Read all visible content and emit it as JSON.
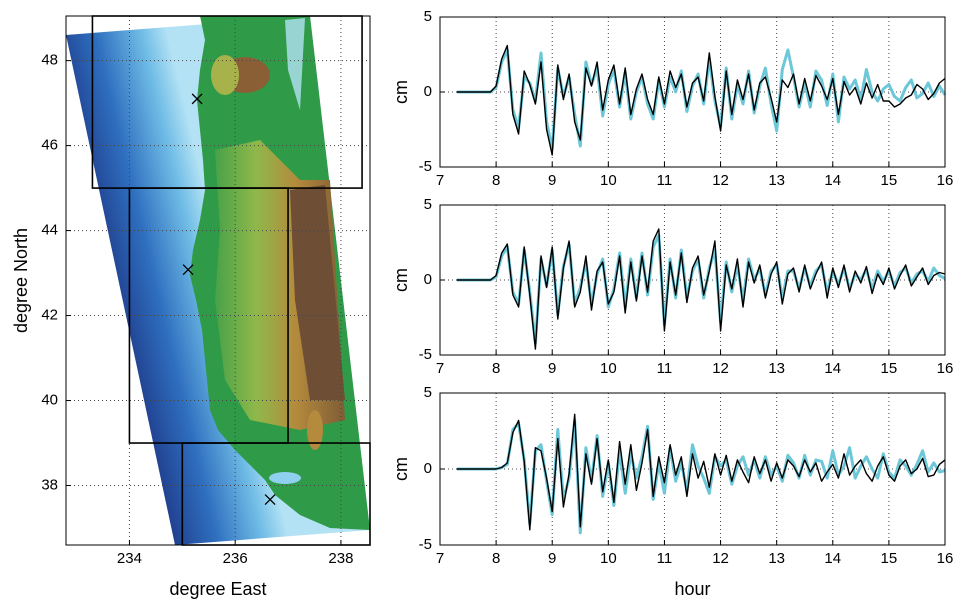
{
  "chart_data": [
    {
      "type": "map",
      "xlabel": "degree East",
      "ylabel": "degree North",
      "xlim": [
        232.8,
        238.55
      ],
      "ylim": [
        36.6,
        49.05
      ],
      "xticks": [
        234,
        236,
        238
      ],
      "yticks": [
        38,
        40,
        42,
        44,
        46,
        48
      ],
      "grid": true,
      "boxes": [
        [
          233.3,
          238.4,
          45,
          49.05
        ],
        [
          234,
          237,
          39,
          45
        ],
        [
          235,
          238.55,
          36.6,
          39
        ]
      ],
      "markers": [
        {
          "x": 235.28,
          "y": 47.1
        },
        {
          "x": 235.11,
          "y": 43.08
        },
        {
          "x": 236.66,
          "y": 37.67
        }
      ]
    },
    {
      "type": "line",
      "ylabel": "cm",
      "xlim": [
        7,
        16
      ],
      "ylim": [
        -5,
        5
      ],
      "xticks": [
        7,
        8,
        9,
        10,
        11,
        12,
        13,
        14,
        15,
        16
      ],
      "yticks": [
        -5,
        0,
        5
      ],
      "grid": true,
      "x": [
        7.3,
        7.4,
        7.5,
        7.6,
        7.7,
        7.8,
        7.9,
        8.0,
        8.1,
        8.2,
        8.3,
        8.4,
        8.5,
        8.6,
        8.7,
        8.8,
        8.9,
        9.0,
        9.1,
        9.2,
        9.3,
        9.4,
        9.5,
        9.6,
        9.7,
        9.8,
        9.9,
        10.0,
        10.1,
        10.2,
        10.3,
        10.4,
        10.5,
        10.6,
        10.7,
        10.8,
        10.9,
        11.0,
        11.1,
        11.2,
        11.3,
        11.4,
        11.5,
        11.6,
        11.7,
        11.8,
        11.9,
        12.0,
        12.1,
        12.2,
        12.3,
        12.4,
        12.5,
        12.6,
        12.7,
        12.8,
        12.9,
        13.0,
        13.1,
        13.2,
        13.3,
        13.4,
        13.5,
        13.6,
        13.7,
        13.8,
        13.9,
        14.0,
        14.1,
        14.2,
        14.3,
        14.4,
        14.5,
        14.6,
        14.7,
        14.8,
        14.9,
        15.0,
        15.1,
        15.2,
        15.3,
        15.4,
        15.5,
        15.6,
        15.7,
        15.8,
        15.9,
        16.0
      ],
      "series": [
        {
          "color": "#6cc8d8",
          "values": [
            0,
            0,
            0,
            0,
            0,
            0,
            0,
            0.3,
            2.0,
            2.8,
            -1.2,
            -2.4,
            1.0,
            0.6,
            -0.6,
            2.6,
            -2.0,
            -3.8,
            1.6,
            -0.3,
            1.0,
            -1.5,
            -3.6,
            2.0,
            0.5,
            1.6,
            -1.6,
            0.5,
            1.5,
            -1.0,
            1.3,
            -1.8,
            0.0,
            1.0,
            -0.8,
            -1.8,
            0.8,
            -1.0,
            1.0,
            0.0,
            1.4,
            -1.3,
            0.4,
            1.2,
            -0.8,
            2.2,
            -0.6,
            -2.3,
            1.6,
            -1.8,
            0.5,
            -0.8,
            1.4,
            -1.4,
            0.4,
            1.6,
            -0.8,
            -2.6,
            1.5,
            2.8,
            1.0,
            -1.0,
            0.6,
            -1.0,
            1.4,
            0.8,
            -0.9,
            1.2,
            -2.0,
            1.0,
            0.2,
            0.8,
            -0.5,
            1.5,
            0.0,
            -0.6,
            0.2,
            0.5,
            -0.3,
            -0.6,
            0.3,
            0.8,
            -0.4,
            -0.1,
            0.6,
            -0.3,
            0.4,
            -0.2
          ]
        },
        {
          "color": "#000000",
          "values": [
            0,
            0,
            0,
            0,
            0,
            0,
            0,
            0.4,
            2.2,
            3.1,
            -1.5,
            -2.8,
            1.4,
            0.5,
            -0.8,
            2.0,
            -2.5,
            -4.2,
            1.8,
            -0.5,
            1.2,
            -2.0,
            -3.2,
            1.6,
            0.4,
            2.0,
            -1.2,
            0.8,
            1.8,
            -0.8,
            1.6,
            -1.5,
            0.2,
            1.2,
            -0.5,
            -1.5,
            1.0,
            -0.8,
            1.4,
            0.3,
            1.2,
            -1.0,
            0.6,
            1.0,
            -0.6,
            2.6,
            -0.3,
            -2.6,
            1.4,
            -1.5,
            0.8,
            -0.5,
            1.2,
            -1.2,
            0.6,
            1.0,
            -0.4,
            -2.0,
            0.8,
            0.3,
            1.2,
            -0.8,
            0.9,
            -0.6,
            1.1,
            0.4,
            -0.5,
            0.9,
            -1.5,
            0.7,
            -0.2,
            0.3,
            -0.8,
            0.6,
            -0.4,
            0.5,
            -0.6,
            -0.6,
            -1.0,
            -0.8,
            -0.4,
            -0.2,
            0.5,
            0.2,
            -0.5,
            -0.1,
            0.6,
            0.9
          ]
        }
      ]
    },
    {
      "type": "line",
      "ylabel": "cm",
      "xlim": [
        7,
        16
      ],
      "ylim": [
        -5,
        5
      ],
      "xticks": [
        7,
        8,
        9,
        10,
        11,
        12,
        13,
        14,
        15,
        16
      ],
      "yticks": [
        -5,
        0,
        5
      ],
      "grid": true,
      "x": [
        7.3,
        7.4,
        7.5,
        7.6,
        7.7,
        7.8,
        7.9,
        8.0,
        8.1,
        8.2,
        8.3,
        8.4,
        8.5,
        8.6,
        8.7,
        8.8,
        8.9,
        9.0,
        9.1,
        9.2,
        9.3,
        9.4,
        9.5,
        9.6,
        9.7,
        9.8,
        9.9,
        10.0,
        10.1,
        10.2,
        10.3,
        10.4,
        10.5,
        10.6,
        10.7,
        10.8,
        10.9,
        11.0,
        11.1,
        11.2,
        11.3,
        11.4,
        11.5,
        11.6,
        11.7,
        11.8,
        11.9,
        12.0,
        12.1,
        12.2,
        12.3,
        12.4,
        12.5,
        12.6,
        12.7,
        12.8,
        12.9,
        13.0,
        13.1,
        13.2,
        13.3,
        13.4,
        13.5,
        13.6,
        13.7,
        13.8,
        13.9,
        14.0,
        14.1,
        14.2,
        14.3,
        14.4,
        14.5,
        14.6,
        14.7,
        14.8,
        14.9,
        15.0,
        15.1,
        15.2,
        15.3,
        15.4,
        15.5,
        15.6,
        15.7,
        15.8,
        15.9,
        16.0
      ],
      "series": [
        {
          "color": "#6cc8d8",
          "values": [
            0,
            0,
            0,
            0,
            0,
            0,
            0,
            0.2,
            1.6,
            2.2,
            -0.8,
            -1.6,
            2.0,
            -0.8,
            -4.2,
            1.4,
            -0.4,
            2.0,
            -2.3,
            0.9,
            2.4,
            -1.6,
            -0.5,
            1.2,
            -1.6,
            0.4,
            1.4,
            -1.8,
            -0.6,
            1.8,
            -1.8,
            1.4,
            -1.2,
            1.8,
            -1.0,
            2.2,
            3.0,
            -3.0,
            1.4,
            -1.2,
            2.0,
            -1.2,
            0.6,
            1.4,
            -1.2,
            0.8,
            2.0,
            -2.8,
            1.2,
            -0.8,
            1.0,
            -1.4,
            1.4,
            0.0,
            0.8,
            -1.0,
            0.6,
            1.0,
            -1.2,
            0.6,
            0.6,
            -0.6,
            0.8,
            -0.4,
            0.6,
            1.0,
            -0.8,
            0.6,
            -0.3,
            0.8,
            -0.6,
            0.4,
            0.0,
            0.7,
            -0.6,
            0.6,
            -0.1,
            0.6,
            -0.4,
            0.5,
            0.8,
            -0.2,
            0.4,
            0.6,
            -0.1,
            0.8,
            0.3,
            0.1
          ]
        },
        {
          "color": "#000000",
          "values": [
            0,
            0,
            0,
            0,
            0,
            0,
            0,
            0.3,
            1.8,
            2.4,
            -1.0,
            -1.8,
            2.2,
            -1.0,
            -4.6,
            1.6,
            -0.5,
            2.2,
            -2.6,
            0.8,
            2.6,
            -1.8,
            -0.8,
            1.6,
            -2.0,
            0.6,
            1.2,
            -1.6,
            -0.8,
            1.6,
            -2.2,
            1.2,
            -1.4,
            1.6,
            -0.8,
            2.6,
            3.4,
            -3.4,
            1.2,
            -1.0,
            1.8,
            -1.5,
            0.8,
            1.6,
            -1.0,
            0.6,
            2.6,
            -3.4,
            1.0,
            -0.6,
            1.4,
            -1.8,
            1.2,
            -0.2,
            1.0,
            -1.2,
            0.4,
            1.2,
            -1.6,
            0.4,
            0.8,
            -0.8,
            1.0,
            -0.6,
            0.4,
            1.2,
            -1.2,
            0.8,
            -0.5,
            1.0,
            -0.8,
            0.6,
            -0.2,
            0.9,
            -0.9,
            0.4,
            -0.3,
            0.8,
            -0.6,
            0.3,
            1.0,
            -0.4,
            0.2,
            0.8,
            -0.3,
            0.3,
            0.5,
            0.4
          ]
        }
      ]
    },
    {
      "type": "line",
      "xlabel": "hour",
      "ylabel": "cm",
      "xlim": [
        7,
        16
      ],
      "ylim": [
        -5,
        5
      ],
      "xticks": [
        7,
        8,
        9,
        10,
        11,
        12,
        13,
        14,
        15,
        16
      ],
      "yticks": [
        -5,
        0,
        5
      ],
      "grid": true,
      "x": [
        7.3,
        7.4,
        7.5,
        7.6,
        7.7,
        7.8,
        7.9,
        8.0,
        8.1,
        8.2,
        8.3,
        8.4,
        8.5,
        8.6,
        8.7,
        8.8,
        8.9,
        9.0,
        9.1,
        9.2,
        9.3,
        9.4,
        9.5,
        9.6,
        9.7,
        9.8,
        9.9,
        10.0,
        10.1,
        10.2,
        10.3,
        10.4,
        10.5,
        10.6,
        10.7,
        10.8,
        10.9,
        11.0,
        11.1,
        11.2,
        11.3,
        11.4,
        11.5,
        11.6,
        11.7,
        11.8,
        11.9,
        12.0,
        12.1,
        12.2,
        12.3,
        12.4,
        12.5,
        12.6,
        12.7,
        12.8,
        12.9,
        13.0,
        13.1,
        13.2,
        13.3,
        13.4,
        13.5,
        13.6,
        13.7,
        13.8,
        13.9,
        14.0,
        14.1,
        14.2,
        14.3,
        14.4,
        14.5,
        14.6,
        14.7,
        14.8,
        14.9,
        15.0,
        15.1,
        15.2,
        15.3,
        15.4,
        15.5,
        15.6,
        15.7,
        15.8,
        15.9,
        16.0
      ],
      "series": [
        {
          "color": "#6cc8d8",
          "values": [
            0,
            0,
            0,
            0,
            0,
            0,
            0,
            0.0,
            0.1,
            0.3,
            2.6,
            3.0,
            0.6,
            -3.6,
            1.2,
            1.6,
            -0.8,
            -3.0,
            2.6,
            -2.0,
            -0.6,
            3.2,
            -4.2,
            1.4,
            -0.8,
            2.2,
            -1.8,
            0.4,
            -2.4,
            1.2,
            -1.6,
            1.0,
            -0.6,
            0.8,
            2.8,
            -2.0,
            0.4,
            -1.6,
            1.4,
            -0.8,
            0.4,
            -1.4,
            1.6,
            0.2,
            -0.6,
            -1.6,
            0.8,
            0.2,
            0.6,
            -1.0,
            0.2,
            0.8,
            -0.4,
            0.6,
            -0.6,
            0.8,
            -0.4,
            0.2,
            -0.8,
            0.9,
            0.4,
            -0.6,
            0.9,
            -0.4,
            0.6,
            0.5,
            -0.6,
            1.2,
            -0.4,
            0.2,
            1.4,
            -0.6,
            0.2,
            0.8,
            0.0,
            -0.6,
            1.0,
            -0.2,
            -0.6,
            0.6,
            0.2,
            -0.4,
            0.3,
            1.2,
            -0.2,
            0.4,
            -0.2,
            -0.1
          ]
        },
        {
          "color": "#000000",
          "values": [
            0,
            0,
            0,
            0,
            0,
            0,
            0,
            0.0,
            0.1,
            0.4,
            2.4,
            3.2,
            0.5,
            -4.0,
            1.4,
            1.2,
            -0.6,
            -2.8,
            2.0,
            -2.5,
            -0.3,
            3.6,
            -3.8,
            1.0,
            -1.0,
            2.0,
            -1.5,
            0.6,
            -2.2,
            1.8,
            -1.0,
            1.6,
            -1.4,
            0.4,
            2.6,
            -1.8,
            0.8,
            -0.9,
            1.6,
            -0.4,
            0.8,
            -1.8,
            1.0,
            -0.6,
            0.5,
            -1.2,
            1.0,
            -0.4,
            0.9,
            -0.8,
            0.6,
            -0.2,
            -0.9,
            0.8,
            -0.3,
            0.6,
            -0.8,
            0.4,
            -0.6,
            0.6,
            0.2,
            -0.5,
            0.6,
            -0.2,
            0.4,
            -0.8,
            -0.2,
            0.3,
            -0.6,
            1.0,
            -0.4,
            0.2,
            0.6,
            -0.3,
            -0.8,
            0.2,
            0.8,
            -0.4,
            -0.8,
            0.2,
            0.6,
            -0.3,
            0.0,
            0.7,
            -0.5,
            -0.4,
            0.3,
            0.6
          ]
        }
      ]
    }
  ]
}
